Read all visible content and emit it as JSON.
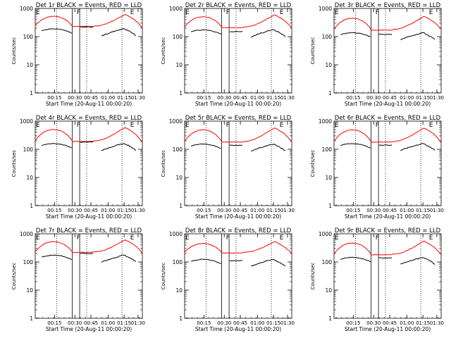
{
  "chart_data": [
    {
      "type": "line",
      "title": "Det 1r BLACK = Events, RED = LLD",
      "ylabel": "Counts/sec",
      "xlabel": "Start Time (20-Aug-11 00:00:20)",
      "yscale": "log",
      "ylim": [
        1,
        1000
      ],
      "xlim": [
        0,
        100
      ],
      "x_ticks": [
        "00:15",
        "00:30",
        "00:45",
        "01:00",
        "01:15",
        "01:30"
      ],
      "y_ticks": [
        "1",
        "10",
        "100",
        "1000"
      ],
      "markers": [
        "E",
        "F",
        "E"
      ],
      "series": [
        {
          "name": "LLD",
          "color": "#ff0000"
        },
        {
          "name": "Events",
          "color": "#000000"
        }
      ],
      "shape": {
        "red_base": 240,
        "red_peak": 560,
        "black_base": 130,
        "red_end": 200,
        "gap_black": 220
      }
    },
    {
      "type": "line",
      "title": "Det 2r BLACK = Events, RED = LLD",
      "ylabel": "Counts/sec",
      "xlabel": "Start Time (20-Aug-11 00:00:20)",
      "yscale": "log",
      "ylim": [
        1,
        1000
      ],
      "xlim": [
        0,
        100
      ],
      "x_ticks": [
        "00:15",
        "00:30",
        "00:45",
        "01:00",
        "01:15",
        "01:30"
      ],
      "y_ticks": [
        "1",
        "10",
        "100",
        "1000"
      ],
      "markers": [
        "E",
        "F",
        "E"
      ],
      "series": [
        {
          "name": "LLD",
          "color": "#ff0000"
        },
        {
          "name": "Events",
          "color": "#000000"
        }
      ],
      "shape": {
        "red_base": 220,
        "red_peak": 540,
        "black_base": 120,
        "red_end": 200,
        "gap_black": 150
      }
    },
    {
      "type": "line",
      "title": "Det 3r BLACK = Events, RED = LLD",
      "ylabel": "Counts/sec",
      "xlabel": "Start Time (20-Aug-11 00:00:20)",
      "yscale": "log",
      "ylim": [
        1,
        1000
      ],
      "xlim": [
        0,
        100
      ],
      "x_ticks": [
        "00:15",
        "00:30",
        "00:45",
        "01:00",
        "01:15",
        "01:30"
      ],
      "y_ticks": [
        "1",
        "10",
        "100",
        "1000"
      ],
      "markers": [
        "E",
        "F",
        "E"
      ],
      "series": [
        {
          "name": "LLD",
          "color": "#ff0000"
        },
        {
          "name": "Events",
          "color": "#000000"
        }
      ],
      "shape": {
        "red_base": 180,
        "red_peak": 480,
        "black_base": 95,
        "red_end": 180,
        "gap_black": 120
      }
    },
    {
      "type": "line",
      "title": "Det 4r BLACK = Events, RED = LLD",
      "ylabel": "Counts/sec",
      "xlabel": "Start Time (20-Aug-11 00:00:20)",
      "yscale": "log",
      "ylim": [
        1,
        1000
      ],
      "xlim": [
        0,
        100
      ],
      "x_ticks": [
        "00:15",
        "00:30",
        "00:45",
        "01:00",
        "01:15",
        "01:30"
      ],
      "y_ticks": [
        "1",
        "10",
        "100",
        "1000"
      ],
      "markers": [
        "E",
        "F",
        "E"
      ],
      "series": [
        {
          "name": "LLD",
          "color": "#ff0000"
        },
        {
          "name": "Events",
          "color": "#000000"
        }
      ],
      "shape": {
        "red_base": 200,
        "red_peak": 540,
        "black_base": 110,
        "red_end": 170,
        "gap_black": 180
      }
    },
    {
      "type": "line",
      "title": "Det 5r BLACK = Events, RED = LLD",
      "ylabel": "Counts/sec",
      "xlabel": "Start Time (20-Aug-11 00:00:20)",
      "yscale": "log",
      "ylim": [
        1,
        1000
      ],
      "xlim": [
        0,
        100
      ],
      "x_ticks": [
        "00:15",
        "00:30",
        "00:45",
        "01:00",
        "01:15",
        "01:30"
      ],
      "y_ticks": [
        "1",
        "10",
        "100",
        "1000"
      ],
      "markers": [
        "E",
        "F",
        "E"
      ],
      "series": [
        {
          "name": "LLD",
          "color": "#ff0000"
        },
        {
          "name": "Events",
          "color": "#000000"
        }
      ],
      "shape": {
        "red_base": 190,
        "red_peak": 520,
        "black_base": 105,
        "red_end": 180,
        "gap_black": 140
      }
    },
    {
      "type": "line",
      "title": "Det 6r BLACK = Events, RED = LLD",
      "ylabel": "Counts/sec",
      "xlabel": "Start Time (20-Aug-11 00:00:20)",
      "yscale": "log",
      "ylim": [
        1,
        1000
      ],
      "xlim": [
        0,
        100
      ],
      "x_ticks": [
        "00:15",
        "00:30",
        "00:45",
        "01:00",
        "01:15",
        "01:30"
      ],
      "y_ticks": [
        "1",
        "10",
        "100",
        "1000"
      ],
      "markers": [
        "E",
        "F",
        "E"
      ],
      "series": [
        {
          "name": "LLD",
          "color": "#ff0000"
        },
        {
          "name": "Events",
          "color": "#000000"
        }
      ],
      "shape": {
        "red_base": 190,
        "red_peak": 520,
        "black_base": 110,
        "red_end": 170,
        "gap_black": 140
      }
    },
    {
      "type": "line",
      "title": "Det 7r BLACK = Events, RED = LLD",
      "ylabel": "Counts/sec",
      "xlabel": "Start Time (20-Aug-11 00:00:20)",
      "yscale": "log",
      "ylim": [
        1,
        1000
      ],
      "xlim": [
        0,
        100
      ],
      "x_ticks": [
        "00:15",
        "00:30",
        "00:45",
        "01:00",
        "01:15",
        "01:30"
      ],
      "y_ticks": [
        "1",
        "10",
        "100",
        "1000"
      ],
      "markers": [
        "E",
        "F",
        "E"
      ],
      "series": [
        {
          "name": "LLD",
          "color": "#ff0000"
        },
        {
          "name": "Events",
          "color": "#000000"
        }
      ],
      "shape": {
        "red_base": 230,
        "red_peak": 560,
        "black_base": 120,
        "red_end": 200,
        "gap_black": 200
      }
    },
    {
      "type": "line",
      "title": "Det 8r BLACK = Events, RED = LLD",
      "ylabel": "Counts/sec",
      "xlabel": "Start Time (20-Aug-11 00:00:20)",
      "yscale": "log",
      "ylim": [
        1,
        1000
      ],
      "xlim": [
        0,
        100
      ],
      "x_ticks": [
        "00:15",
        "00:30",
        "00:45",
        "01:00",
        "01:15",
        "01:30"
      ],
      "y_ticks": [
        "1",
        "10",
        "100",
        "1000"
      ],
      "markers": [
        "E",
        "F",
        "E"
      ],
      "series": [
        {
          "name": "LLD",
          "color": "#ff0000"
        },
        {
          "name": "Events",
          "color": "#000000"
        }
      ],
      "shape": {
        "red_base": 220,
        "red_peak": 480,
        "black_base": 85,
        "red_end": 200,
        "gap_black": 110
      }
    },
    {
      "type": "line",
      "title": "Det 9r BLACK = Events, RED = LLD",
      "ylabel": "Counts/sec",
      "xlabel": "Start Time (20-Aug-11 00:00:20)",
      "yscale": "log",
      "ylim": [
        1,
        1000
      ],
      "xlim": [
        0,
        100
      ],
      "x_ticks": [
        "00:15",
        "00:30",
        "00:45",
        "01:00",
        "01:15",
        "01:30"
      ],
      "y_ticks": [
        "1",
        "10",
        "100",
        "1000"
      ],
      "markers": [
        "E",
        "F",
        "E"
      ],
      "series": [
        {
          "name": "LLD",
          "color": "#ff0000"
        },
        {
          "name": "Events",
          "color": "#000000"
        }
      ],
      "shape": {
        "red_base": 190,
        "red_peak": 500,
        "black_base": 100,
        "red_end": 180,
        "gap_black": 140
      }
    }
  ]
}
